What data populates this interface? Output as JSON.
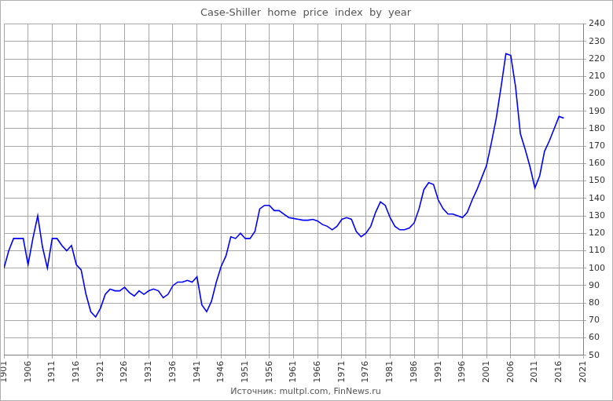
{
  "chart_data": {
    "type": "line",
    "title": "Case-Shiller  home  price  index  by  year",
    "source": "Источник: multpl.com, FinNews.ru",
    "x": [
      1901,
      1902,
      1903,
      1904,
      1905,
      1906,
      1907,
      1908,
      1909,
      1910,
      1911,
      1912,
      1913,
      1914,
      1915,
      1916,
      1917,
      1918,
      1919,
      1920,
      1921,
      1922,
      1923,
      1924,
      1925,
      1926,
      1927,
      1928,
      1929,
      1930,
      1931,
      1932,
      1933,
      1934,
      1935,
      1936,
      1937,
      1938,
      1939,
      1940,
      1941,
      1942,
      1943,
      1944,
      1945,
      1946,
      1947,
      1948,
      1949,
      1950,
      1951,
      1952,
      1953,
      1954,
      1955,
      1956,
      1957,
      1958,
      1959,
      1960,
      1961,
      1962,
      1963,
      1964,
      1965,
      1966,
      1967,
      1968,
      1969,
      1970,
      1971,
      1972,
      1973,
      1974,
      1975,
      1976,
      1977,
      1978,
      1979,
      1980,
      1981,
      1982,
      1983,
      1984,
      1985,
      1986,
      1987,
      1988,
      1989,
      1990,
      1991,
      1992,
      1993,
      1994,
      1995,
      1996,
      1997,
      1998,
      1999,
      2000,
      2001,
      2002,
      2003,
      2004,
      2005,
      2006,
      2007,
      2008,
      2009,
      2010,
      2011,
      2012,
      2013,
      2014,
      2015,
      2016,
      2017
    ],
    "values": [
      100,
      110,
      117,
      117,
      117,
      102,
      117,
      130,
      112,
      100,
      117,
      117,
      113,
      110,
      113,
      102,
      99,
      85,
      75,
      72,
      77,
      85,
      88,
      87,
      87,
      89,
      86,
      84,
      87,
      85,
      87,
      88,
      87,
      83,
      85,
      90,
      92,
      92,
      93,
      92,
      95,
      79,
      75,
      81,
      92,
      101,
      107,
      118,
      117,
      120,
      117,
      117,
      121,
      134,
      136,
      136,
      133,
      133,
      131,
      129,
      128.5,
      128,
      127.5,
      127.5,
      128,
      127,
      125,
      124,
      122,
      124,
      128,
      129,
      128,
      121,
      118,
      120,
      124,
      132,
      138,
      136,
      129,
      124,
      122,
      122,
      123,
      126,
      134,
      145,
      149,
      148,
      139,
      134,
      131,
      131,
      130,
      129,
      132,
      139,
      145,
      152,
      159,
      172,
      186,
      204,
      223,
      222,
      204,
      177,
      168,
      158,
      146,
      153,
      167,
      173,
      180,
      187,
      186
    ],
    "color": "#0000ff",
    "xlim": [
      1901,
      2021
    ],
    "xticks": [
      1901,
      1906,
      1911,
      1916,
      1921,
      1926,
      1931,
      1936,
      1941,
      1946,
      1951,
      1956,
      1961,
      1966,
      1971,
      1976,
      1981,
      1986,
      1991,
      1996,
      2001,
      2006,
      2011,
      2016,
      2021
    ],
    "ylim": [
      50,
      240
    ],
    "yticks": [
      50,
      60,
      70,
      80,
      90,
      100,
      110,
      120,
      130,
      140,
      150,
      160,
      170,
      180,
      190,
      200,
      210,
      220,
      230,
      240
    ],
    "grid": true
  }
}
